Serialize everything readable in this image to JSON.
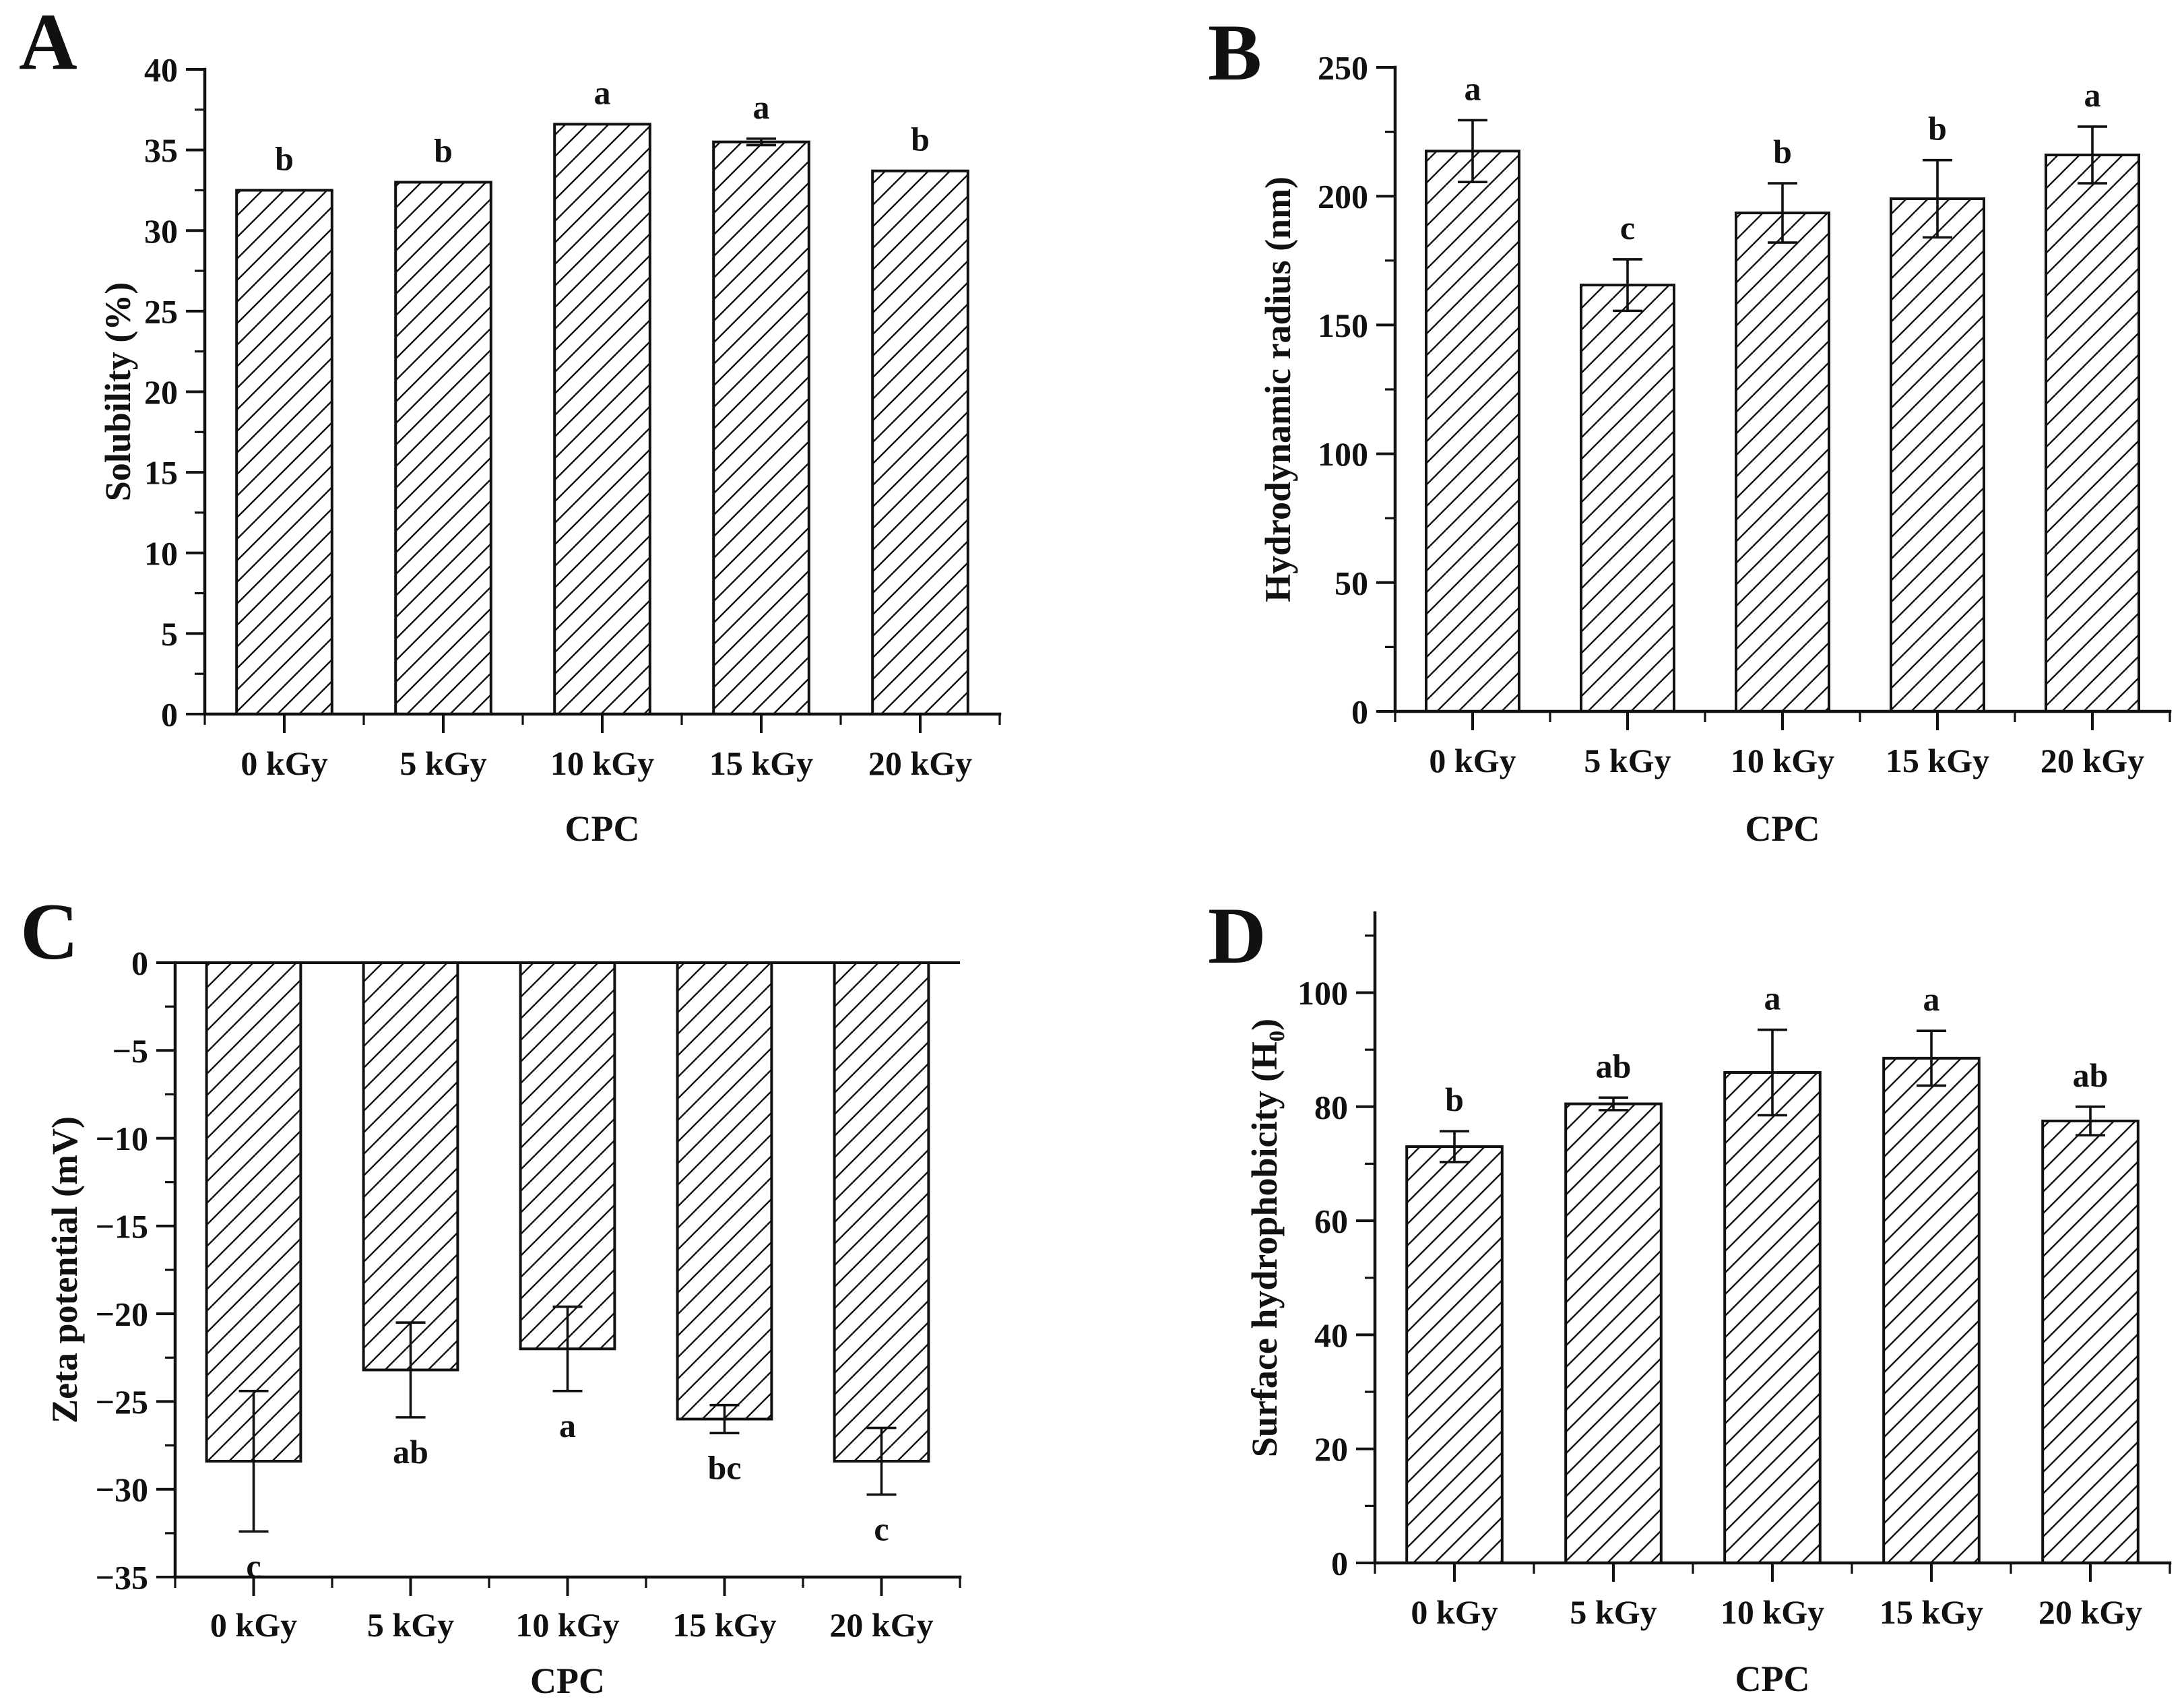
{
  "figure": {
    "background": "#ffffff",
    "ink": "#111111",
    "bar_pattern": "diagonal-hatch",
    "x_axis_title": "CPC",
    "categories": [
      "0 kGy",
      "5 kGy",
      "10 kGy",
      "15 kGy",
      "20 kGy"
    ]
  },
  "chart_data": [
    {
      "panel_label": "A",
      "type": "bar",
      "ylabel": "Solubility (%)",
      "xlabel": "CPC",
      "categories": [
        "0 kGy",
        "5 kGy",
        "10 kGy",
        "15 kGy",
        "20 kGy"
      ],
      "values": [
        32.5,
        33.0,
        36.6,
        35.5,
        33.7
      ],
      "errors": [
        0,
        0,
        0,
        0.2,
        0
      ],
      "sig_letters": [
        "b",
        "b",
        "a",
        "a",
        "b"
      ],
      "ylim": [
        0,
        40
      ],
      "ytick_values": [
        0,
        5,
        10,
        15,
        20,
        25,
        30,
        35,
        40
      ],
      "ytick_labels": [
        "0",
        "5",
        "10",
        "15",
        "20",
        "25",
        "30",
        "35",
        "40"
      ],
      "yminor_values": [
        2.5,
        7.5,
        12.5,
        17.5,
        22.5,
        27.5,
        32.5,
        37.5
      ],
      "grid": false,
      "legend": null
    },
    {
      "panel_label": "B",
      "type": "bar",
      "ylabel": "Hydrodynamic radius (nm)",
      "xlabel": "CPC",
      "categories": [
        "0 kGy",
        "5 kGy",
        "10 kGy",
        "15 kGy",
        "20 kGy"
      ],
      "values": [
        217.5,
        165.5,
        193.5,
        199.0,
        216.0
      ],
      "errors": [
        12,
        10,
        11.5,
        15,
        11
      ],
      "sig_letters": [
        "a",
        "c",
        "b",
        "b",
        "a"
      ],
      "ylim": [
        0,
        250
      ],
      "ytick_values": [
        0,
        50,
        100,
        150,
        200,
        250
      ],
      "ytick_labels": [
        "0",
        "50",
        "100",
        "150",
        "200",
        "250"
      ],
      "yminor_values": [
        25,
        75,
        125,
        175,
        225
      ],
      "grid": false,
      "legend": null
    },
    {
      "panel_label": "C",
      "type": "bar",
      "ylabel": "Zeta potential (mV)",
      "xlabel": "CPC",
      "categories": [
        "0 kGy",
        "5 kGy",
        "10 kGy",
        "15 kGy",
        "20 kGy"
      ],
      "values": [
        -28.4,
        -23.2,
        -22.0,
        -26.0,
        -28.4
      ],
      "errors": [
        4.0,
        2.7,
        2.4,
        0.8,
        1.9
      ],
      "sig_letters": [
        "c",
        "ab",
        "a",
        "bc",
        "c"
      ],
      "ylim": [
        -35,
        0
      ],
      "ytick_values": [
        0,
        -5,
        -10,
        -15,
        -20,
        -25,
        -30,
        -35
      ],
      "ytick_labels": [
        "0",
        "−5",
        "−10",
        "−15",
        "−20",
        "−25",
        "−30",
        "−35"
      ],
      "yminor_values": [
        -2.5,
        -7.5,
        -12.5,
        -17.5,
        -22.5,
        -27.5,
        -32.5
      ],
      "grid": false,
      "legend": null
    },
    {
      "panel_label": "D",
      "type": "bar",
      "ylabel": "Surface hydrophobicity (H₀)",
      "xlabel": "CPC",
      "categories": [
        "0 kGy",
        "5 kGy",
        "10 kGy",
        "15 kGy",
        "20 kGy"
      ],
      "values": [
        73.0,
        80.5,
        86.0,
        88.5,
        77.5
      ],
      "errors": [
        2.7,
        1.1,
        7.5,
        4.8,
        2.5
      ],
      "sig_letters": [
        "b",
        "ab",
        "a",
        "a",
        "ab"
      ],
      "ylim": [
        0,
        114
      ],
      "ytick_values": [
        0,
        20,
        40,
        60,
        80,
        100
      ],
      "ytick_labels": [
        "0",
        "20",
        "40",
        "60",
        "80",
        "100"
      ],
      "yminor_values": [
        10,
        30,
        50,
        70,
        90,
        110
      ],
      "grid": false,
      "legend": null
    }
  ]
}
